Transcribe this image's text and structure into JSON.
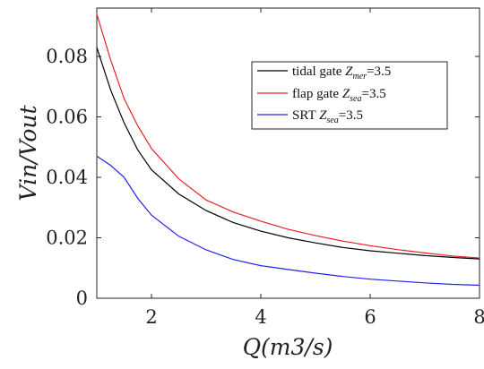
{
  "chart_data": {
    "type": "line",
    "xlabel": "Q(m3/s)",
    "ylabel": "Vin/Vout",
    "xlim": [
      1,
      8
    ],
    "ylim": [
      0,
      0.096
    ],
    "xticks": [
      2,
      4,
      6,
      8
    ],
    "xtick_labels": [
      "2",
      "4",
      "6",
      "8"
    ],
    "yticks": [
      0,
      0.02,
      0.04,
      0.06,
      0.08
    ],
    "ytick_labels": [
      "0",
      "0.02",
      "0.04",
      "0.06",
      "0.08"
    ],
    "grid": false,
    "legend_position": "top-right",
    "series": [
      {
        "name": "tidal gate Z_mer=3.5",
        "legend": {
          "prefix": "tidal gate ",
          "var": "Z",
          "sub": "mer",
          "suffix": "=3.5"
        },
        "color": "#000000",
        "x": [
          1.0,
          1.25,
          1.5,
          1.75,
          2.0,
          2.5,
          3.0,
          3.5,
          4.0,
          4.5,
          5.0,
          5.5,
          6.0,
          6.5,
          7.0,
          7.5,
          8.0
        ],
        "y": [
          0.083,
          0.069,
          0.058,
          0.049,
          0.0425,
          0.0345,
          0.029,
          0.025,
          0.0222,
          0.02,
          0.0183,
          0.0168,
          0.0157,
          0.0149,
          0.0141,
          0.0135,
          0.013
        ]
      },
      {
        "name": "flap gate Z_sea=3.5",
        "legend": {
          "prefix": "flap gate ",
          "var": "Z",
          "sub": "sea",
          "suffix": "=3.5"
        },
        "color": "#e8202a",
        "x": [
          1.0,
          1.25,
          1.5,
          1.75,
          2.0,
          2.5,
          3.0,
          3.5,
          4.0,
          4.5,
          5.0,
          5.5,
          6.0,
          6.5,
          7.0,
          7.5,
          8.0
        ],
        "y": [
          0.094,
          0.079,
          0.066,
          0.057,
          0.0495,
          0.0395,
          0.0325,
          0.0285,
          0.0255,
          0.0228,
          0.0207,
          0.0189,
          0.0174,
          0.0161,
          0.015,
          0.014,
          0.0133
        ]
      },
      {
        "name": "SRT Z_sea=3.5",
        "legend": {
          "prefix": "SRT ",
          "var": "Z",
          "sub": "sea",
          "suffix": "=3.5"
        },
        "color": "#2222ee",
        "x": [
          1.0,
          1.25,
          1.5,
          1.75,
          2.0,
          2.5,
          3.0,
          3.5,
          4.0,
          4.5,
          5.0,
          5.5,
          6.0,
          6.5,
          7.0,
          7.5,
          8.0
        ],
        "y": [
          0.047,
          0.044,
          0.04,
          0.033,
          0.0275,
          0.0205,
          0.016,
          0.0128,
          0.0108,
          0.0095,
          0.0083,
          0.0072,
          0.0063,
          0.0057,
          0.0051,
          0.0046,
          0.0043
        ]
      }
    ]
  }
}
